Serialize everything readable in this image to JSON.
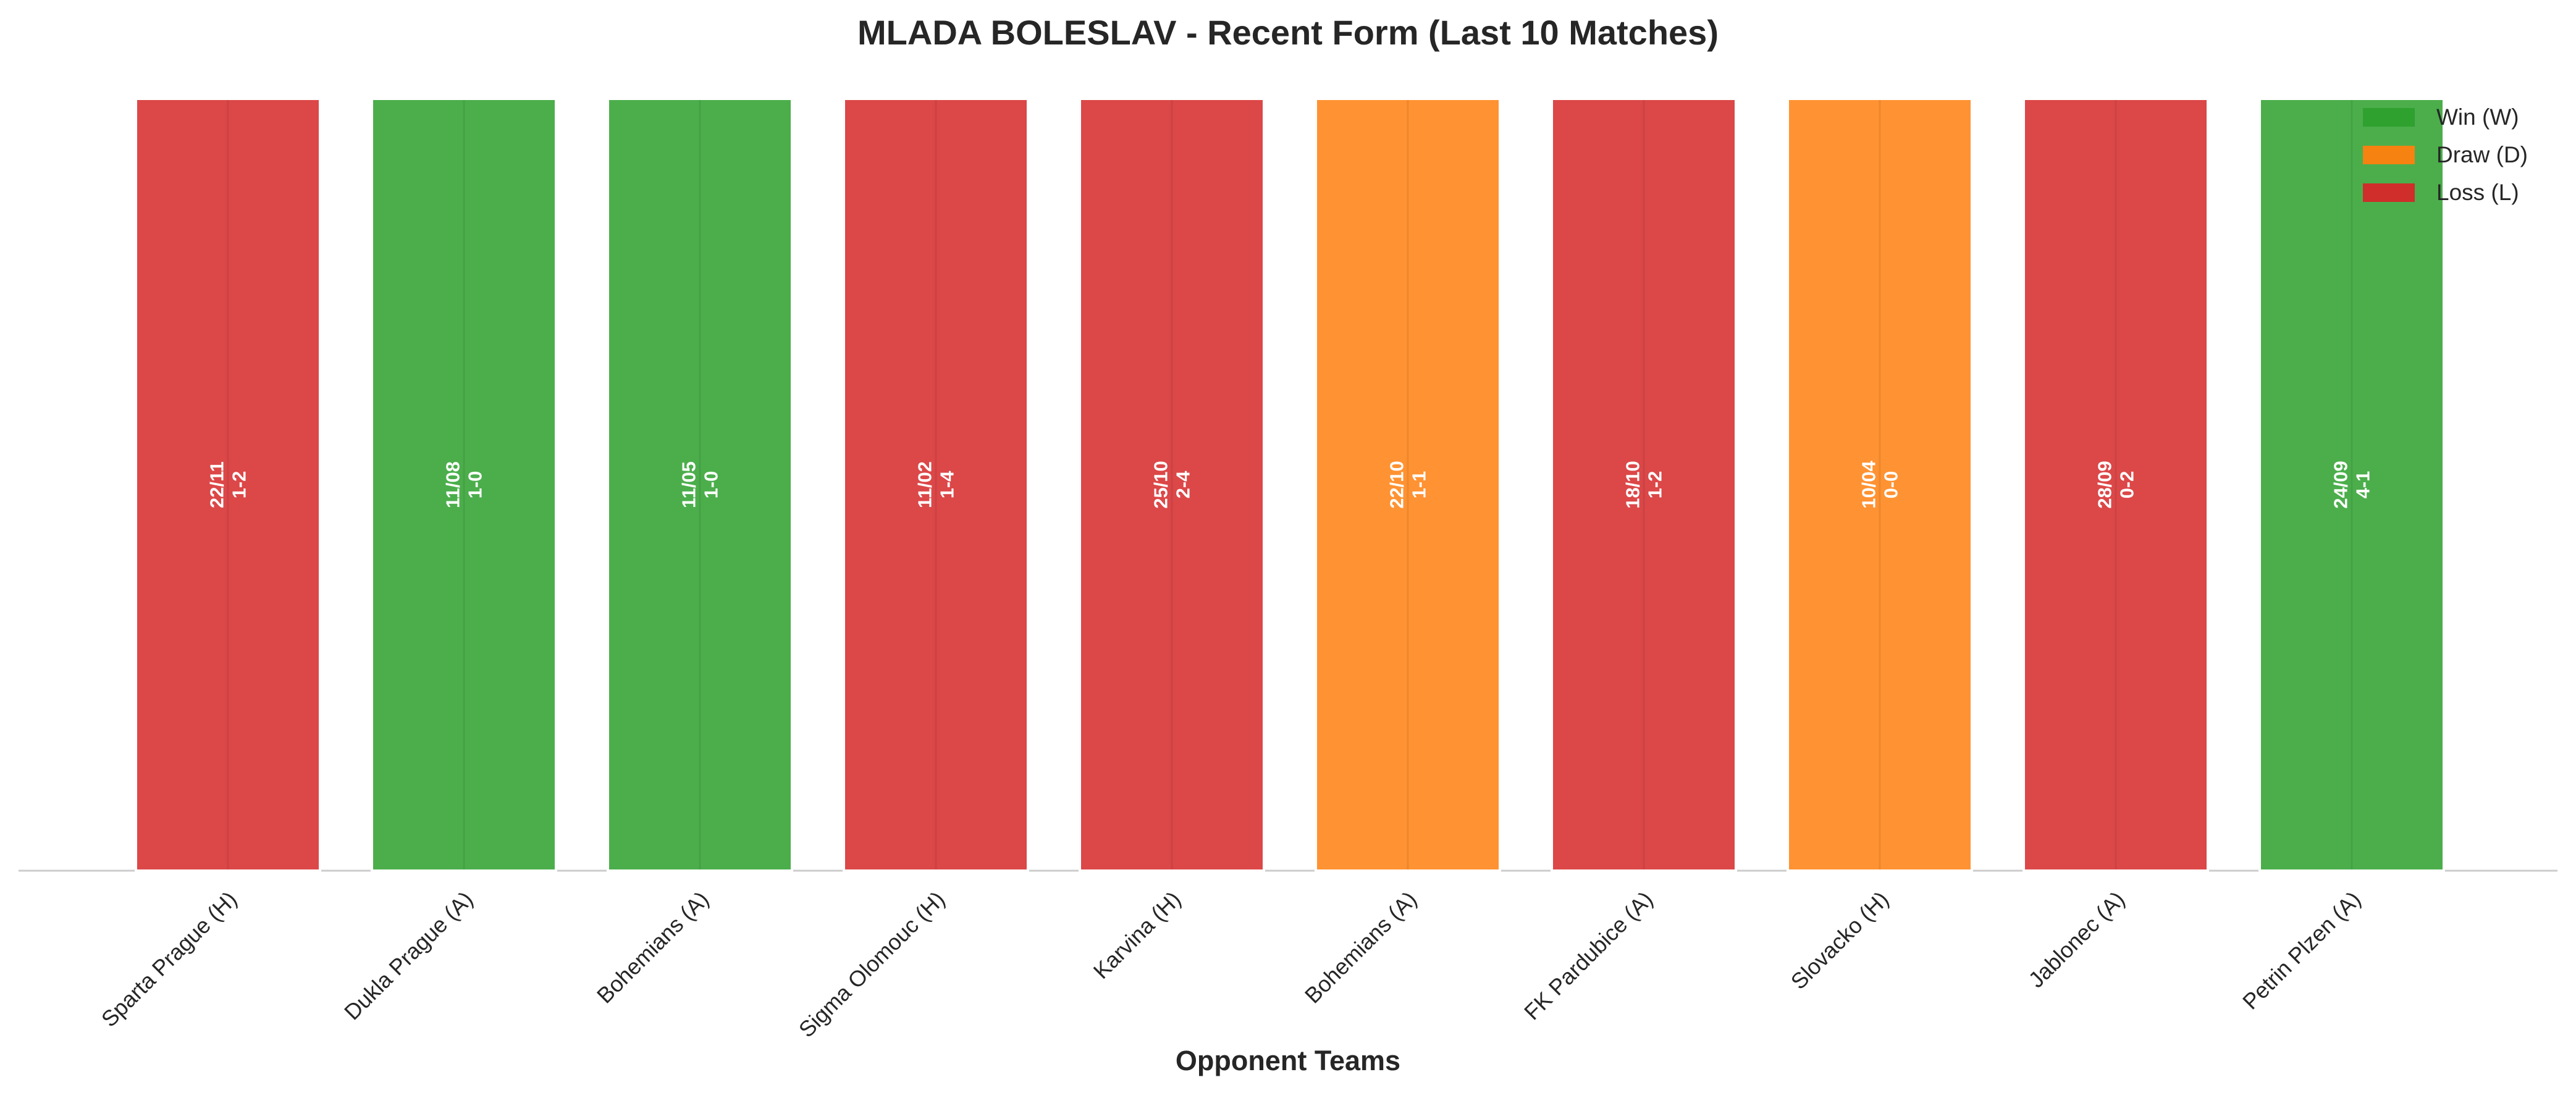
{
  "chart_data": {
    "type": "bar",
    "title": "MLADA BOLESLAV - Recent Form (Last 10 Matches)",
    "xlabel": "Opponent Teams",
    "ylabel": "",
    "ylim": [
      0,
      1
    ],
    "grid": false,
    "legend_position": "top-right",
    "categories": [
      "Sparta Prague (H)",
      "Dukla Prague (A)",
      "Bohemians (A)",
      "Sigma Olomouc (H)",
      "Karvina (H)",
      "Bohemians (A)",
      "FK Pardubice (A)",
      "Slovacko (H)",
      "Jablonec (A)",
      "Petrin Plzen (A)"
    ],
    "values": [
      1,
      1,
      1,
      1,
      1,
      1,
      1,
      1,
      1,
      1
    ],
    "results": [
      "L",
      "W",
      "W",
      "L",
      "L",
      "D",
      "L",
      "D",
      "L",
      "W"
    ],
    "dates": [
      "22/11",
      "11/08",
      "11/05",
      "11/02",
      "25/10",
      "22/10",
      "18/10",
      "10/04",
      "28/09",
      "24/09"
    ],
    "scores": [
      "1-2",
      "1-0",
      "1-0",
      "1-4",
      "2-4",
      "1-1",
      "1-2",
      "0-0",
      "0-2",
      "4-1"
    ],
    "legend": [
      {
        "key": "W",
        "label": "Win (W)",
        "color": "#2ca02c"
      },
      {
        "key": "D",
        "label": "Draw (D)",
        "color": "#ff7f0e"
      },
      {
        "key": "L",
        "label": "Loss (L)",
        "color": "#d62728"
      }
    ]
  }
}
